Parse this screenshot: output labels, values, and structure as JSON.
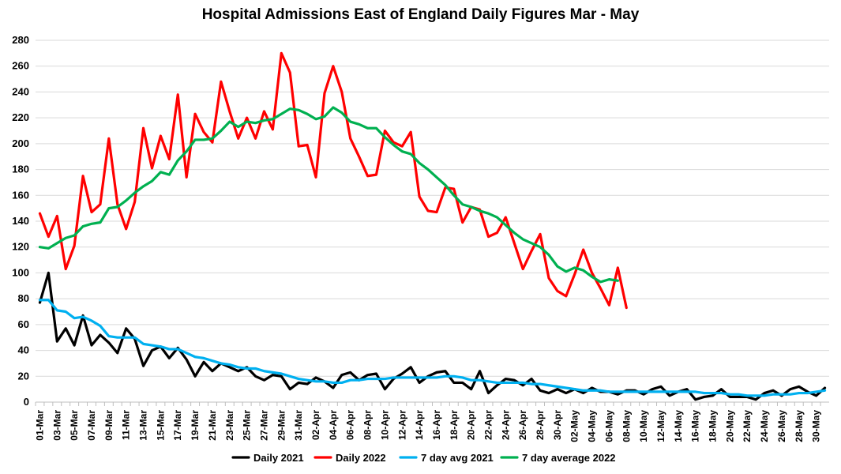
{
  "chart_data": {
    "type": "line",
    "title": "Hospital Admissions East of England Daily Figures Mar - May",
    "xlabel": "",
    "ylabel": "",
    "ylim": [
      0,
      280
    ],
    "yticks": [
      0,
      20,
      40,
      60,
      80,
      100,
      120,
      140,
      160,
      180,
      200,
      220,
      240,
      260,
      280
    ],
    "grid": true,
    "legend_position": "bottom",
    "x_tick_labels": [
      "01-Mar",
      "03-Mar",
      "05-Mar",
      "07-Mar",
      "09-Mar",
      "11-Mar",
      "13-Mar",
      "15-Mar",
      "17-Mar",
      "19-Mar",
      "21-Mar",
      "23-Mar",
      "25-Mar",
      "27-Mar",
      "29-Mar",
      "31-Mar",
      "02-Apr",
      "04-Apr",
      "06-Apr",
      "08-Apr",
      "10-Apr",
      "12-Apr",
      "14-Apr",
      "16-Apr",
      "18-Apr",
      "20-Apr",
      "22-Apr",
      "24-Apr",
      "26-Apr",
      "28-Apr",
      "30-Apr",
      "02-May",
      "04-May",
      "06-May",
      "08-May",
      "10-May",
      "12-May",
      "14-May",
      "16-May",
      "18-May",
      "20-May",
      "22-May",
      "24-May",
      "26-May",
      "28-May",
      "30-May"
    ],
    "series": [
      {
        "name": "Daily 2021",
        "color": "#000000",
        "values": [
          77,
          100,
          47,
          57,
          44,
          67,
          44,
          52,
          46,
          38,
          57,
          49,
          28,
          40,
          43,
          34,
          42,
          33,
          20,
          31,
          24,
          30,
          27,
          24,
          27,
          20,
          17,
          21,
          20,
          10,
          15,
          14,
          19,
          16,
          11,
          21,
          23,
          17,
          21,
          22,
          10,
          18,
          22,
          27,
          15,
          20,
          23,
          24,
          15,
          15,
          10,
          24,
          7,
          13,
          18,
          17,
          13,
          18,
          9,
          7,
          10,
          7,
          10,
          7,
          11,
          8,
          8,
          6,
          9,
          9,
          6,
          10,
          12,
          5,
          8,
          10,
          2,
          4,
          5,
          10,
          4,
          4,
          4,
          2,
          7,
          9,
          5,
          10,
          12,
          8,
          5,
          11
        ]
      },
      {
        "name": "Daily 2022",
        "color": "#ff0000",
        "values": [
          146,
          128,
          144,
          103,
          121,
          175,
          147,
          153,
          204,
          153,
          134,
          155,
          212,
          181,
          206,
          188,
          238,
          174,
          223,
          209,
          201,
          248,
          225,
          204,
          220,
          204,
          225,
          211,
          270,
          255,
          198,
          199,
          174,
          239,
          260,
          240,
          204,
          190,
          175,
          176,
          210,
          201,
          198,
          209,
          159,
          148,
          147,
          166,
          165,
          139,
          151,
          149,
          128,
          131,
          143,
          123,
          103,
          117,
          130,
          96,
          86,
          82,
          99,
          118,
          100,
          88,
          75,
          104,
          73
        ],
        "last_index": 68
      },
      {
        "name": "7 day avg 2021",
        "color": "#00b0f0",
        "values": [
          79,
          79,
          71,
          70,
          65,
          66,
          63,
          59,
          51,
          50,
          50,
          50,
          45,
          44,
          43,
          41,
          41,
          38,
          35,
          34,
          32,
          30,
          29,
          27,
          26,
          26,
          24,
          23,
          22,
          20,
          18,
          17,
          16,
          16,
          15,
          15,
          17,
          17,
          18,
          18,
          18,
          19,
          19,
          19,
          19,
          19,
          19,
          20,
          20,
          19,
          17,
          17,
          16,
          15,
          15,
          15,
          15,
          14,
          14,
          13,
          12,
          11,
          10,
          9,
          9,
          9,
          8,
          8,
          8,
          8,
          8,
          8,
          8,
          8,
          8,
          8,
          8,
          7,
          7,
          7,
          6,
          6,
          5,
          5,
          5,
          6,
          6,
          6,
          7,
          7,
          8,
          9
        ]
      },
      {
        "name": "7 day average 2022",
        "color": "#00b050",
        "values": [
          120,
          119,
          123,
          127,
          129,
          136,
          138,
          139,
          150,
          151,
          156,
          162,
          167,
          171,
          178,
          176,
          187,
          194,
          203,
          203,
          204,
          210,
          217,
          213,
          217,
          216,
          218,
          219,
          223,
          227,
          226,
          223,
          219,
          221,
          228,
          224,
          217,
          215,
          212,
          212,
          205,
          199,
          194,
          192,
          185,
          180,
          174,
          168,
          160,
          153,
          151,
          148,
          146,
          143,
          137,
          131,
          126,
          123,
          120,
          114,
          105,
          101,
          104,
          102,
          97,
          93,
          95,
          94
        ],
        "last_index": 67
      }
    ]
  }
}
